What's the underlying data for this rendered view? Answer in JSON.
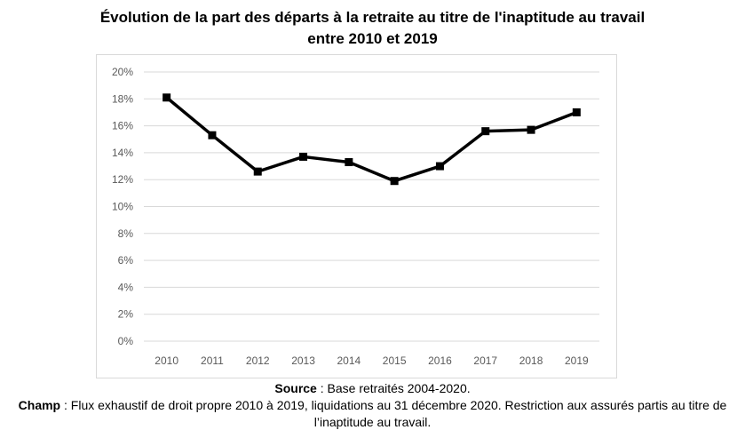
{
  "chart_data": {
    "type": "line",
    "title_line1": "Évolution de la part des départs à la retraite au titre de l'inaptitude au travail",
    "title_line2": "entre 2010 et 2019",
    "xlabel": "",
    "ylabel": "",
    "categories": [
      "2010",
      "2011",
      "2012",
      "2013",
      "2014",
      "2015",
      "2016",
      "2017",
      "2018",
      "2019"
    ],
    "series": [
      {
        "values": [
          18.1,
          15.3,
          12.6,
          13.7,
          13.3,
          11.9,
          13.0,
          15.6,
          15.7,
          17.0
        ]
      }
    ],
    "ylim": [
      0,
      20
    ],
    "yticks": [
      "0%",
      "2%",
      "4%",
      "6%",
      "8%",
      "10%",
      "12%",
      "14%",
      "16%",
      "18%",
      "20%"
    ],
    "grid": true,
    "legend": "none",
    "line_color": "#000000",
    "grid_color": "#d9d9d9"
  },
  "footer": {
    "source_label": "Source",
    "source_text": " : Base retraités 2004-2020.",
    "champ_label": "Champ",
    "champ_text": " : Flux exhaustif de droit propre 2010 à 2019, liquidations au 31 décembre 2020. Restriction aux assurés partis au titre de l’inaptitude au travail."
  }
}
